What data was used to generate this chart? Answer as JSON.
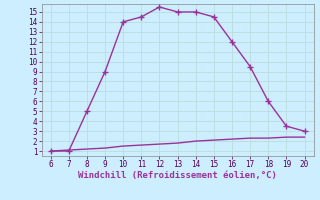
{
  "x": [
    6,
    7,
    8,
    9,
    10,
    11,
    12,
    13,
    14,
    15,
    16,
    17,
    18,
    19,
    20
  ],
  "y_upper": [
    1,
    1,
    5,
    9,
    14,
    14.5,
    15.5,
    15,
    15,
    14.5,
    12,
    9.5,
    6,
    3.5,
    3
  ],
  "y_lower": [
    1,
    1.1,
    1.2,
    1.3,
    1.5,
    1.6,
    1.7,
    1.8,
    2.0,
    2.1,
    2.2,
    2.3,
    2.3,
    2.4,
    2.4
  ],
  "color": "#993399",
  "bg_color": "#cceeff",
  "grid_color": "#bbdddd",
  "xlabel": "Windchill (Refroidissement éolien,°C)",
  "xlim_min": 5.5,
  "xlim_max": 20.5,
  "ylim_min": 0.5,
  "ylim_max": 15.8,
  "xticks": [
    6,
    7,
    8,
    9,
    10,
    11,
    12,
    13,
    14,
    15,
    16,
    17,
    18,
    19,
    20
  ],
  "yticks": [
    1,
    2,
    3,
    4,
    5,
    6,
    7,
    8,
    9,
    10,
    11,
    12,
    13,
    14,
    15
  ],
  "marker": "+",
  "marker_size": 5,
  "linewidth": 1.0,
  "tick_fontsize": 5.5,
  "xlabel_fontsize": 6.5,
  "xlabel_color": "#993399"
}
